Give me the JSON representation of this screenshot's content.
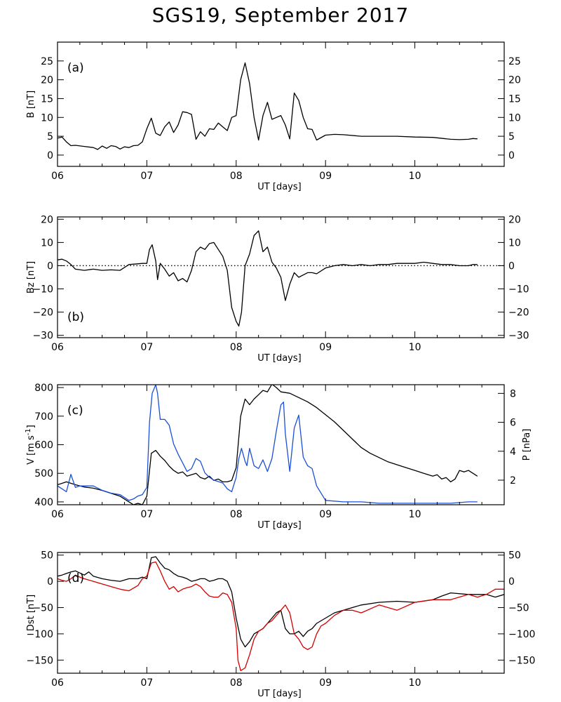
{
  "title": "SGS19, September 2017",
  "chart_data": [
    {
      "type": "line",
      "panel_label": "(a)",
      "xlabel": "UT [days]",
      "ylabel": "B [nT]",
      "xlim": [
        6.0,
        11.0
      ],
      "ylim": [
        -3,
        30
      ],
      "xticks": [
        6,
        7,
        8,
        9,
        10
      ],
      "xtick_labels": [
        "06",
        "07",
        "08",
        "09",
        "10"
      ],
      "yticks": [
        0,
        5,
        10,
        15,
        20,
        25
      ],
      "ytick_labels": [
        "0",
        "5",
        "10",
        "15",
        "20",
        "25"
      ],
      "right_ylabel": "",
      "series": [
        {
          "name": "",
          "color": "#000000",
          "x": [
            6.0,
            6.05,
            6.1,
            6.15,
            6.2,
            6.3,
            6.4,
            6.45,
            6.5,
            6.55,
            6.6,
            6.65,
            6.7,
            6.75,
            6.8,
            6.85,
            6.9,
            6.95,
            7.0,
            7.05,
            7.1,
            7.15,
            7.2,
            7.25,
            7.3,
            7.35,
            7.4,
            7.45,
            7.5,
            7.55,
            7.6,
            7.65,
            7.7,
            7.75,
            7.8,
            7.85,
            7.9,
            7.95,
            8.0,
            8.05,
            8.1,
            8.15,
            8.2,
            8.25,
            8.3,
            8.35,
            8.4,
            8.45,
            8.5,
            8.55,
            8.6,
            8.65,
            8.7,
            8.75,
            8.8,
            8.85,
            8.9,
            9.0,
            9.1,
            9.2,
            9.4,
            9.6,
            9.8,
            10.0,
            10.2,
            10.4,
            10.5,
            10.6,
            10.65,
            10.7
          ],
          "y": [
            4.5,
            4.8,
            3.5,
            2.5,
            2.6,
            2.3,
            2.0,
            1.5,
            2.4,
            1.8,
            2.5,
            2.3,
            1.6,
            2.2,
            2.0,
            2.5,
            2.6,
            3.5,
            7.0,
            9.8,
            5.8,
            5.2,
            7.5,
            8.8,
            6.0,
            8.0,
            11.5,
            11.3,
            10.8,
            4.2,
            6.2,
            5.0,
            7.0,
            6.8,
            8.5,
            7.5,
            6.5,
            10.0,
            10.5,
            20.0,
            24.5,
            19.0,
            10.0,
            4.0,
            10.5,
            14.0,
            9.5,
            10.0,
            10.5,
            8.0,
            4.3,
            16.5,
            14.5,
            10.0,
            7.0,
            6.8,
            4.0,
            5.3,
            5.5,
            5.4,
            5.0,
            5.0,
            5.0,
            4.8,
            4.7,
            4.2,
            4.1,
            4.2,
            4.4,
            4.3
          ]
        }
      ]
    },
    {
      "type": "line",
      "panel_label": "(b)",
      "xlabel": "UT [days]",
      "ylabel": "Bz [nT]",
      "xlim": [
        6.0,
        11.0
      ],
      "ylim": [
        -31,
        21
      ],
      "xticks": [
        6,
        7,
        8,
        9,
        10
      ],
      "xtick_labels": [
        "06",
        "07",
        "08",
        "09",
        "10"
      ],
      "yticks": [
        -30,
        -20,
        -10,
        0,
        10,
        20
      ],
      "ytick_labels": [
        "−30",
        "−20",
        "−10",
        "0",
        "10",
        "20"
      ],
      "zero_line": "dotted",
      "series": [
        {
          "name": "",
          "color": "#000000",
          "x": [
            6.0,
            6.05,
            6.1,
            6.15,
            6.2,
            6.3,
            6.4,
            6.5,
            6.6,
            6.7,
            6.8,
            6.9,
            6.95,
            7.0,
            7.03,
            7.06,
            7.1,
            7.12,
            7.15,
            7.2,
            7.25,
            7.3,
            7.35,
            7.4,
            7.45,
            7.5,
            7.55,
            7.6,
            7.65,
            7.7,
            7.75,
            7.8,
            7.85,
            7.9,
            7.95,
            8.0,
            8.03,
            8.06,
            8.1,
            8.15,
            8.2,
            8.25,
            8.3,
            8.35,
            8.4,
            8.45,
            8.5,
            8.55,
            8.6,
            8.65,
            8.7,
            8.75,
            8.8,
            8.85,
            8.9,
            9.0,
            9.1,
            9.2,
            9.3,
            9.4,
            9.5,
            9.6,
            9.7,
            9.8,
            9.9,
            10.0,
            10.1,
            10.2,
            10.3,
            10.4,
            10.5,
            10.6,
            10.65,
            10.7
          ],
          "y": [
            2.5,
            2.8,
            2.0,
            0.5,
            -1.5,
            -2.0,
            -1.5,
            -2.0,
            -1.8,
            -2.0,
            0.5,
            0.8,
            1.0,
            1.0,
            7.0,
            9.0,
            2.0,
            -6.0,
            1.0,
            -1.5,
            -4.5,
            -3.0,
            -6.5,
            -5.5,
            -7.0,
            -2.0,
            6.0,
            8.0,
            7.0,
            9.5,
            10.0,
            7.0,
            4.0,
            -2.0,
            -18.0,
            -24.0,
            -26.0,
            -20.0,
            0.0,
            5.0,
            13.0,
            15.0,
            6.0,
            8.0,
            1.5,
            -1.0,
            -5.0,
            -15.0,
            -8.0,
            -3.0,
            -5.0,
            -4.0,
            -3.0,
            -3.0,
            -3.5,
            -1.0,
            0.0,
            0.5,
            0.0,
            0.5,
            0.0,
            0.5,
            0.5,
            1.0,
            1.0,
            1.0,
            1.5,
            1.0,
            0.5,
            0.5,
            0.0,
            0.0,
            0.5,
            0.5
          ]
        }
      ]
    },
    {
      "type": "line",
      "panel_label": "(c)",
      "xlabel": "UT [days]",
      "ylabel": "V [m s",
      "ylabel_superscript": "-1",
      "ylabel_end": "]",
      "right_ylabel": "P [nPa]",
      "xlim": [
        6.0,
        11.0
      ],
      "ylim": [
        390,
        810
      ],
      "right_ylim": [
        0.3,
        8.6
      ],
      "xticks": [
        6,
        7,
        8,
        9,
        10
      ],
      "xtick_labels": [
        "06",
        "07",
        "08",
        "09",
        "10"
      ],
      "yticks": [
        400,
        500,
        600,
        700,
        800
      ],
      "ytick_labels": [
        "400",
        "500",
        "600",
        "700",
        "800"
      ],
      "right_yticks": [
        2,
        4,
        6,
        8
      ],
      "right_ytick_labels": [
        "2",
        "4",
        "6",
        "8"
      ],
      "series": [
        {
          "name": "V",
          "axis": "left",
          "color": "#000000",
          "x": [
            6.0,
            6.05,
            6.1,
            6.2,
            6.3,
            6.4,
            6.5,
            6.6,
            6.7,
            6.75,
            6.8,
            6.85,
            6.9,
            6.95,
            7.0,
            7.05,
            7.1,
            7.15,
            7.2,
            7.25,
            7.3,
            7.35,
            7.4,
            7.45,
            7.5,
            7.55,
            7.6,
            7.65,
            7.7,
            7.75,
            7.8,
            7.85,
            7.9,
            7.95,
            8.0,
            8.05,
            8.1,
            8.15,
            8.2,
            8.25,
            8.3,
            8.35,
            8.4,
            8.45,
            8.5,
            8.6,
            8.7,
            8.8,
            8.9,
            9.0,
            9.1,
            9.2,
            9.3,
            9.4,
            9.5,
            9.6,
            9.7,
            9.8,
            9.9,
            10.0,
            10.1,
            10.2,
            10.25,
            10.3,
            10.35,
            10.4,
            10.45,
            10.5,
            10.55,
            10.6,
            10.65,
            10.7
          ],
          "y": [
            460,
            465,
            470,
            460,
            452,
            448,
            440,
            430,
            420,
            410,
            400,
            390,
            395,
            390,
            420,
            570,
            580,
            560,
            545,
            525,
            510,
            500,
            505,
            490,
            495,
            500,
            485,
            480,
            490,
            475,
            480,
            470,
            470,
            475,
            520,
            700,
            760,
            740,
            760,
            775,
            790,
            785,
            812,
            800,
            785,
            780,
            765,
            750,
            730,
            705,
            680,
            650,
            620,
            590,
            570,
            555,
            540,
            530,
            520,
            510,
            500,
            490,
            495,
            480,
            485,
            470,
            480,
            510,
            505,
            510,
            500,
            490
          ]
        },
        {
          "name": "P",
          "axis": "right",
          "color": "#1a4fd6",
          "x": [
            6.0,
            6.05,
            6.1,
            6.15,
            6.2,
            6.25,
            6.3,
            6.4,
            6.5,
            6.6,
            6.7,
            6.8,
            6.85,
            6.9,
            6.95,
            7.0,
            7.03,
            7.06,
            7.1,
            7.12,
            7.15,
            7.2,
            7.25,
            7.3,
            7.35,
            7.4,
            7.45,
            7.5,
            7.55,
            7.6,
            7.65,
            7.7,
            7.75,
            7.8,
            7.85,
            7.9,
            7.95,
            8.0,
            8.03,
            8.06,
            8.1,
            8.12,
            8.15,
            8.2,
            8.25,
            8.3,
            8.35,
            8.4,
            8.45,
            8.5,
            8.53,
            8.55,
            8.6,
            8.65,
            8.7,
            8.75,
            8.8,
            8.85,
            8.9,
            9.0,
            9.2,
            9.4,
            9.6,
            9.8,
            10.0,
            10.2,
            10.4,
            10.6,
            10.7
          ],
          "y": [
            1.6,
            1.4,
            1.2,
            2.4,
            1.5,
            1.6,
            1.6,
            1.6,
            1.3,
            1.1,
            1.0,
            0.6,
            0.7,
            0.9,
            1.0,
            1.5,
            6.0,
            8.0,
            8.6,
            8.0,
            6.2,
            6.2,
            5.8,
            4.5,
            3.8,
            3.2,
            2.6,
            2.8,
            3.5,
            3.3,
            2.5,
            2.2,
            2.0,
            1.9,
            1.8,
            1.4,
            1.2,
            2.2,
            3.5,
            4.2,
            3.3,
            3.0,
            4.2,
            3.0,
            2.8,
            3.4,
            2.6,
            3.5,
            5.4,
            7.2,
            7.4,
            5.2,
            2.6,
            5.6,
            6.5,
            3.6,
            3.0,
            2.8,
            1.6,
            0.6,
            0.5,
            0.5,
            0.4,
            0.4,
            0.4,
            0.4,
            0.4,
            0.5,
            0.5
          ]
        }
      ]
    },
    {
      "type": "line",
      "panel_label": "(d)",
      "xlabel": "UT [days]",
      "ylabel": "Dst [nT]",
      "xlim": [
        6.0,
        11.0
      ],
      "ylim": [
        -175,
        55
      ],
      "xticks": [
        6,
        7,
        8,
        9,
        10
      ],
      "xtick_labels": [
        "06",
        "07",
        "08",
        "09",
        "10"
      ],
      "yticks": [
        -150,
        -100,
        -50,
        0,
        50
      ],
      "ytick_labels": [
        "−150",
        "−100",
        "−50",
        "0",
        "50"
      ],
      "series": [
        {
          "name": "",
          "color": "#000000",
          "x": [
            6.0,
            6.05,
            6.1,
            6.15,
            6.2,
            6.25,
            6.3,
            6.35,
            6.4,
            6.5,
            6.6,
            6.7,
            6.8,
            6.9,
            6.95,
            7.0,
            7.05,
            7.1,
            7.15,
            7.2,
            7.25,
            7.3,
            7.35,
            7.4,
            7.45,
            7.5,
            7.55,
            7.6,
            7.65,
            7.7,
            7.75,
            7.8,
            7.85,
            7.9,
            7.95,
            8.0,
            8.05,
            8.1,
            8.15,
            8.2,
            8.25,
            8.3,
            8.35,
            8.4,
            8.45,
            8.5,
            8.55,
            8.6,
            8.65,
            8.7,
            8.75,
            8.8,
            8.85,
            8.9,
            9.0,
            9.1,
            9.2,
            9.3,
            9.4,
            9.6,
            9.8,
            10.0,
            10.2,
            10.3,
            10.4,
            10.6,
            10.8,
            10.9,
            11.0
          ],
          "y": [
            10,
            12,
            15,
            18,
            20,
            16,
            12,
            18,
            10,
            5,
            2,
            0,
            5,
            5,
            8,
            5,
            45,
            47,
            35,
            25,
            22,
            15,
            10,
            8,
            5,
            0,
            2,
            5,
            5,
            0,
            2,
            5,
            5,
            0,
            -20,
            -70,
            -110,
            -125,
            -115,
            -100,
            -95,
            -90,
            -80,
            -70,
            -60,
            -55,
            -90,
            -100,
            -100,
            -95,
            -105,
            -95,
            -90,
            -80,
            -70,
            -60,
            -55,
            -50,
            -45,
            -40,
            -38,
            -40,
            -35,
            -28,
            -22,
            -25,
            -25,
            -30,
            -25
          ]
        },
        {
          "name": "",
          "color": "#d40000",
          "x": [
            6.0,
            6.05,
            6.1,
            6.15,
            6.2,
            6.25,
            6.3,
            6.4,
            6.5,
            6.6,
            6.7,
            6.8,
            6.9,
            6.95,
            7.0,
            7.05,
            7.1,
            7.15,
            7.2,
            7.25,
            7.3,
            7.35,
            7.4,
            7.45,
            7.5,
            7.55,
            7.6,
            7.65,
            7.7,
            7.75,
            7.8,
            7.85,
            7.9,
            7.95,
            8.0,
            8.02,
            8.05,
            8.1,
            8.15,
            8.2,
            8.25,
            8.3,
            8.35,
            8.4,
            8.45,
            8.5,
            8.55,
            8.6,
            8.65,
            8.7,
            8.75,
            8.8,
            8.85,
            8.9,
            8.95,
            9.0,
            9.1,
            9.2,
            9.3,
            9.4,
            9.6,
            9.8,
            10.0,
            10.2,
            10.4,
            10.6,
            10.7,
            10.8,
            10.9,
            11.0
          ],
          "y": [
            5,
            2,
            0,
            5,
            12,
            8,
            5,
            0,
            -5,
            -10,
            -15,
            -18,
            -8,
            5,
            10,
            35,
            37,
            20,
            0,
            -15,
            -10,
            -20,
            -15,
            -12,
            -10,
            -5,
            -10,
            -20,
            -28,
            -30,
            -30,
            -22,
            -25,
            -40,
            -90,
            -150,
            -170,
            -165,
            -140,
            -110,
            -95,
            -90,
            -80,
            -75,
            -65,
            -55,
            -45,
            -60,
            -100,
            -110,
            -125,
            -130,
            -125,
            -100,
            -85,
            -80,
            -65,
            -55,
            -55,
            -60,
            -45,
            -55,
            -40,
            -35,
            -35,
            -25,
            -30,
            -25,
            -15,
            -15
          ]
        }
      ]
    }
  ]
}
